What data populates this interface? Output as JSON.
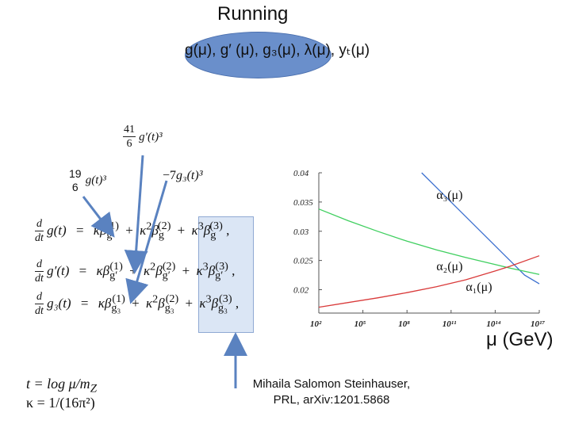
{
  "title": "Running",
  "couplings_label": "g(μ), g′ (μ), g₃(μ), λ(μ), yₜ(μ)",
  "annotations": {
    "gp_coef_num": "41",
    "gp_coef_den": "6",
    "gp_term": "g′(t)³",
    "g_coef_num": "19",
    "g_coef_den": "6",
    "g_term": "g(t)³",
    "g3_coef": "−7",
    "g3_term": "g₃(t)³"
  },
  "equations": [
    {
      "lhs": "g(t)",
      "sub": "g"
    },
    {
      "lhs": "g′(t)",
      "sub": "g′"
    },
    {
      "lhs": "g₃(t)",
      "sub": "g₃"
    }
  ],
  "equation_parts": {
    "d": "d",
    "dt": "dt",
    "equals": "=",
    "kappa": "κ",
    "beta": "β",
    "plus": "+",
    "comma": ",",
    "order1": "(1)",
    "order2": "(2)",
    "order3": "(3)",
    "pow2": "2",
    "pow3": "3"
  },
  "definitions": [
    "t = log μ/m",
    "κ = 1/(16π²)"
  ],
  "definitions_sub": "Z",
  "citation": {
    "line1": "Mihaila Salomon Steinhauser,",
    "line2": "PRL, arXiv:1201.5868"
  },
  "x_axis_label": "μ (GeV)",
  "colors": {
    "alpha3": "#3b6fcf",
    "alpha2": "#3fcf5f",
    "alpha1": "#d93a3a",
    "ellipse": "#6a8fcb",
    "box": "#dbe6f5",
    "arrow": "#5a82c0"
  },
  "chart_data": {
    "type": "line",
    "title": "",
    "xlabel": "μ (GeV)",
    "ylabel": "",
    "x_scale": "log",
    "xlim": [
      100,
      1e+17
    ],
    "ylim": [
      0.016,
      0.04
    ],
    "x_ticks": [
      100,
      100000,
      100000000,
      100000000000,
      100000000000000,
      100000000000000000
    ],
    "x_tick_labels": [
      "10²",
      "10⁵",
      "10⁸",
      "10¹¹",
      "10¹⁴",
      "10¹⁷"
    ],
    "y_ticks": [
      0.02,
      0.025,
      0.03,
      0.035,
      0.04
    ],
    "y_tick_labels": [
      "0.02",
      "0.025",
      "0.03",
      "0.035",
      "0.04"
    ],
    "grid": false,
    "series": [
      {
        "name": "α₃(μ)",
        "color": "#3b6fcf",
        "x": [
          1000000000.0,
          10000000000.0,
          100000000000.0,
          1000000000000.0,
          10000000000000.0,
          100000000000000.0,
          1000000000000000.0,
          1e+16,
          1e+17
        ],
        "y": [
          0.04,
          0.0375,
          0.035,
          0.0325,
          0.03,
          0.0275,
          0.025,
          0.0225,
          0.021
        ]
      },
      {
        "name": "α₂(μ)",
        "color": "#3fcf5f",
        "x": [
          100,
          10000.0,
          1000000.0,
          100000000.0,
          10000000000.0,
          1000000000000.0,
          100000000000000.0,
          1000000000000000.0,
          1e+17
        ],
        "y": [
          0.0338,
          0.0318,
          0.03,
          0.0283,
          0.0268,
          0.0255,
          0.0243,
          0.0237,
          0.0226
        ]
      },
      {
        "name": "α₁(μ)",
        "color": "#d93a3a",
        "x": [
          100,
          10000.0,
          1000000.0,
          100000000.0,
          10000000000.0,
          1000000000000.0,
          100000000000000.0,
          1000000000000000.0,
          1e+17
        ],
        "y": [
          0.017,
          0.0178,
          0.0186,
          0.0195,
          0.0205,
          0.0217,
          0.0232,
          0.024,
          0.0258
        ]
      }
    ]
  }
}
